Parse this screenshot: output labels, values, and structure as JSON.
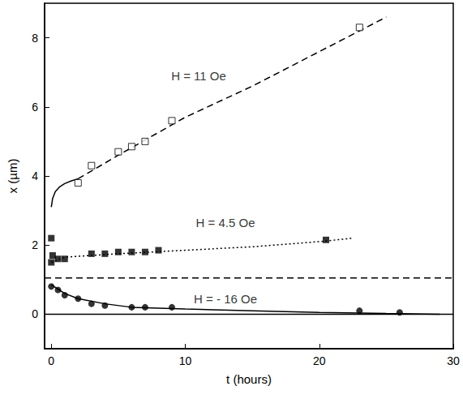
{
  "chart_data": {
    "type": "scatter",
    "x_label": "t (hours)",
    "y_label": "x (µm)",
    "xlim": [
      -0.5,
      30
    ],
    "xticks": [
      0,
      10,
      20,
      30
    ],
    "ylim": [
      -1,
      9
    ],
    "yticks": [
      0,
      2,
      4,
      6,
      8
    ],
    "grid": false,
    "series": [
      {
        "type": "scatter",
        "marker": "open_square",
        "color": "#000000",
        "x": [
          2,
          3,
          5,
          6,
          7,
          9,
          23
        ],
        "values": [
          3.8,
          4.3,
          4.7,
          4.85,
          5.0,
          5.6,
          8.3
        ]
      },
      {
        "type": "line",
        "line_style": "solid",
        "color": "#000000",
        "x": [
          0,
          0.1,
          0.3,
          0.6,
          1,
          1.5,
          2
        ],
        "values": [
          3.1,
          3.35,
          3.55,
          3.68,
          3.78,
          3.86,
          3.92
        ]
      },
      {
        "type": "line",
        "line_style": "dashed",
        "color": "#000000",
        "x": [
          2,
          5,
          10,
          15,
          20,
          25
        ],
        "values": [
          3.92,
          4.6,
          5.7,
          6.6,
          7.6,
          8.6
        ]
      },
      {
        "type": "scatter",
        "marker": "square",
        "color": "#000000",
        "x": [
          0,
          0,
          0.1,
          0.5,
          1,
          3,
          4,
          5,
          6,
          7,
          8,
          20.5
        ],
        "values": [
          2.2,
          1.5,
          1.7,
          1.6,
          1.6,
          1.75,
          1.75,
          1.8,
          1.8,
          1.8,
          1.85,
          2.15
        ]
      },
      {
        "type": "line",
        "line_style": "dotted",
        "color": "#000000",
        "x": [
          0,
          1,
          5,
          10,
          15,
          20,
          22.5
        ],
        "values": [
          1.5,
          1.65,
          1.75,
          1.85,
          1.95,
          2.1,
          2.2
        ]
      },
      {
        "type": "scatter",
        "marker": "circle",
        "color": "#000000",
        "x": [
          0,
          0.5,
          1,
          2,
          3,
          4,
          6,
          7,
          9,
          23,
          26
        ],
        "values": [
          0.8,
          0.7,
          0.55,
          0.45,
          0.3,
          0.25,
          0.2,
          0.2,
          0.2,
          0.1,
          0.05
        ]
      },
      {
        "type": "line",
        "line_style": "solid",
        "color": "#000000",
        "x": [
          0,
          1,
          2,
          4,
          6,
          10,
          15,
          20,
          25,
          29
        ],
        "values": [
          0.85,
          0.6,
          0.45,
          0.3,
          0.2,
          0.15,
          0.1,
          0.05,
          0.02,
          0
        ]
      },
      {
        "type": "line",
        "line_style": "dashed",
        "color": "#000000",
        "x": [
          -0.5,
          30
        ],
        "values": [
          1.05,
          1.05
        ]
      },
      {
        "type": "line",
        "line_style": "solid",
        "color": "#000000",
        "x": [
          -0.5,
          30
        ],
        "values": [
          0,
          0
        ]
      }
    ],
    "annotations": [
      {
        "text": "H = 11 Oe",
        "x": 11,
        "y": 6.9
      },
      {
        "text": "H = 4.5 Oe",
        "x": 13,
        "y": 2.65
      },
      {
        "text": "H = - 16 Oe",
        "x": 13,
        "y": 0.45
      }
    ]
  }
}
